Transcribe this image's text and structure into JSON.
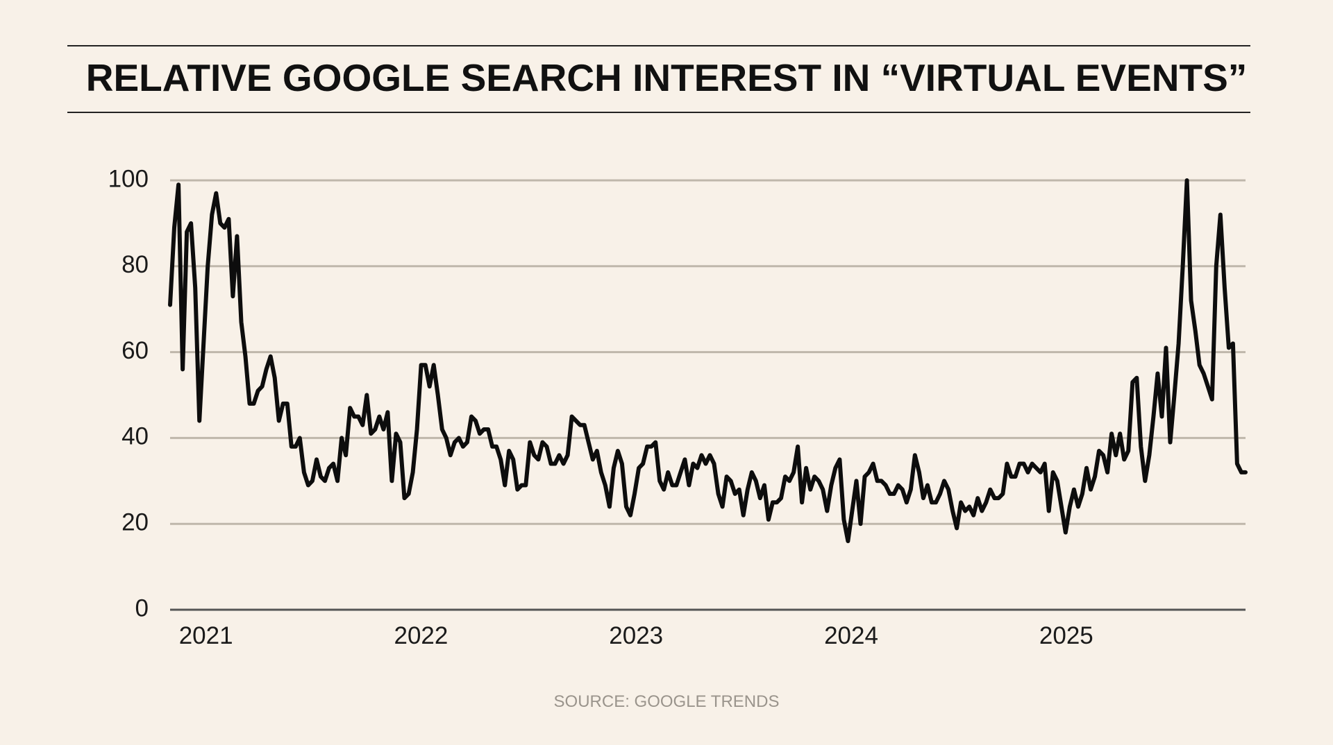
{
  "chart_data": {
    "type": "line",
    "title": "RELATIVE GOOGLE SEARCH INTEREST IN “VIRTUAL EVENTS”",
    "source": "SOURCE: GOOGLE TRENDS",
    "xlabel": "",
    "ylabel": "",
    "frequency": "weekly",
    "x_range": [
      "2020-11",
      "2025-10"
    ],
    "x_ticks": [
      "2021",
      "2022",
      "2023",
      "2024",
      "2025"
    ],
    "ylim": [
      0,
      100
    ],
    "y_ticks": [
      0,
      20,
      40,
      60,
      80,
      100
    ],
    "grid": true,
    "line_color": "#0d0d0d",
    "grid_color": "#bfb7ab",
    "background": "#f8f1e8",
    "values": [
      71,
      89,
      99,
      56,
      88,
      90,
      75,
      44,
      62,
      80,
      92,
      97,
      90,
      89,
      91,
      73,
      87,
      67,
      59,
      48,
      48,
      51,
      52,
      56,
      59,
      54,
      44,
      48,
      48,
      38,
      38,
      40,
      32,
      29,
      30,
      35,
      31,
      30,
      33,
      34,
      30,
      40,
      36,
      47,
      45,
      45,
      43,
      50,
      41,
      42,
      45,
      42,
      46,
      30,
      41,
      39,
      26,
      27,
      32,
      42,
      57,
      57,
      52,
      57,
      50,
      42,
      40,
      36,
      39,
      40,
      38,
      39,
      45,
      44,
      41,
      42,
      42,
      38,
      38,
      35,
      29,
      37,
      35,
      28,
      29,
      29,
      39,
      36,
      35,
      39,
      38,
      34,
      34,
      36,
      34,
      36,
      45,
      44,
      43,
      43,
      39,
      35,
      37,
      32,
      29,
      24,
      33,
      37,
      34,
      24,
      22,
      27,
      33,
      34,
      38,
      38,
      39,
      30,
      28,
      32,
      29,
      29,
      32,
      35,
      29,
      34,
      33,
      36,
      34,
      36,
      34,
      27,
      24,
      31,
      30,
      27,
      28,
      22,
      28,
      32,
      30,
      26,
      29,
      21,
      25,
      25,
      26,
      31,
      30,
      32,
      38,
      25,
      33,
      28,
      31,
      30,
      28,
      23,
      29,
      33,
      35,
      21,
      16,
      23,
      30,
      20,
      31,
      32,
      34,
      30,
      30,
      29,
      27,
      27,
      29,
      28,
      25,
      28,
      36,
      32,
      26,
      29,
      25,
      25,
      27,
      30,
      28,
      23,
      19,
      25,
      23,
      24,
      22,
      26,
      23,
      25,
      28,
      26,
      26,
      27,
      34,
      31,
      31,
      34,
      34,
      32,
      34,
      33,
      32,
      34,
      23,
      32,
      30,
      24,
      18,
      24,
      28,
      24,
      27,
      33,
      28,
      31,
      37,
      36,
      32,
      41,
      36,
      41,
      35,
      37,
      53,
      54,
      38,
      30,
      36,
      45,
      55,
      45,
      61,
      39,
      50,
      62,
      80,
      100,
      72,
      65,
      57,
      55,
      52,
      49,
      80,
      92,
      75,
      61,
      62,
      34,
      32,
      32
    ]
  }
}
